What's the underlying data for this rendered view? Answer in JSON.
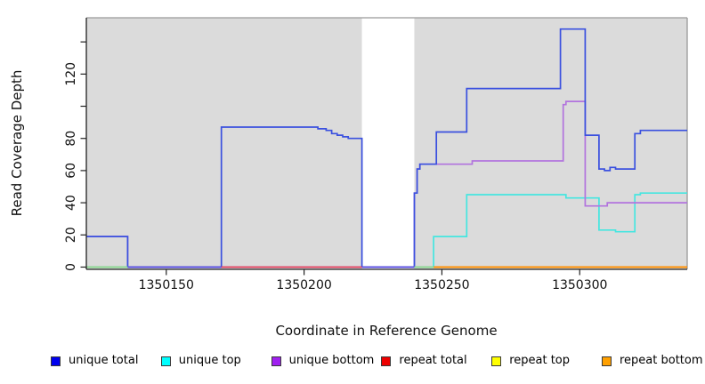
{
  "figure": {
    "xlabel": "Coordinate in Reference Genome",
    "ylabel": "Read Coverage Depth"
  },
  "legend": [
    {
      "label": "unique total",
      "color": "#0000EE"
    },
    {
      "label": "unique top",
      "color": "#00FFFF"
    },
    {
      "label": "unique bottom",
      "color": "#A020F0"
    },
    {
      "label": "repeat total",
      "color": "#EE0000"
    },
    {
      "label": "repeat top",
      "color": "#FFFF00"
    },
    {
      "label": "repeat bottom",
      "color": "#FFA000"
    }
  ],
  "chart_data": {
    "type": "line",
    "step": true,
    "title": "",
    "xlabel": "Coordinate in Reference Genome",
    "ylabel": "Read Coverage Depth",
    "xlim": [
      1350121,
      1350339
    ],
    "ylim": [
      0,
      148
    ],
    "grid": false,
    "plot_background": "#DBDBDB",
    "no_data_region": {
      "from": 1350221,
      "to": 1350240,
      "color": "#FFFFFF"
    },
    "x_ticks": [
      {
        "value": 1350150,
        "label": "1350150"
      },
      {
        "value": 1350200,
        "label": "1350200"
      },
      {
        "value": 1350250,
        "label": "1350250"
      },
      {
        "value": 1350300,
        "label": "1350300"
      }
    ],
    "y_ticks": [
      {
        "value": 0,
        "label": "0"
      },
      {
        "value": 20,
        "label": "20"
      },
      {
        "value": 40,
        "label": "40"
      },
      {
        "value": 60,
        "label": "60"
      },
      {
        "value": 80,
        "label": "80"
      },
      {
        "value": 100,
        "label": ""
      },
      {
        "value": 120,
        "label": "120"
      },
      {
        "value": 140,
        "label": ""
      }
    ],
    "series": [
      {
        "name": "repeat top",
        "color": "#F0F000",
        "points": [
          [
            1350121,
            0
          ],
          [
            1350339,
            0
          ]
        ]
      },
      {
        "name": "repeat total",
        "color": "#E8304A",
        "points": [
          [
            1350121,
            0
          ],
          [
            1350339,
            0
          ]
        ]
      },
      {
        "name": "repeat bottom",
        "color": "#FF9100",
        "points": [
          [
            1350121,
            0
          ],
          [
            1350339,
            0
          ]
        ]
      },
      {
        "name": "unique top",
        "color": "#45E6E0",
        "points": [
          [
            1350121,
            0
          ],
          [
            1350247,
            19
          ],
          [
            1350259,
            45
          ],
          [
            1350295,
            43
          ],
          [
            1350307,
            23
          ],
          [
            1350313,
            22
          ],
          [
            1350320,
            45
          ],
          [
            1350322,
            46
          ],
          [
            1350339,
            46
          ]
        ]
      },
      {
        "name": "unique bottom",
        "color": "#B273DE",
        "points": [
          [
            1350121,
            19
          ],
          [
            1350136,
            0
          ],
          [
            1350240,
            46
          ],
          [
            1350241,
            61
          ],
          [
            1350242,
            64
          ],
          [
            1350261,
            66
          ],
          [
            1350294,
            101
          ],
          [
            1350295,
            103
          ],
          [
            1350302,
            38
          ],
          [
            1350310,
            40
          ],
          [
            1350339,
            40
          ]
        ]
      },
      {
        "name": "unique total",
        "color": "#3A50DF",
        "points": [
          [
            1350121,
            19
          ],
          [
            1350136,
            0
          ],
          [
            1350170,
            87
          ],
          [
            1350205,
            86
          ],
          [
            1350208,
            85
          ],
          [
            1350210,
            83
          ],
          [
            1350212,
            82
          ],
          [
            1350214,
            81
          ],
          [
            1350216,
            80
          ],
          [
            1350221,
            0
          ],
          [
            1350240,
            46
          ],
          [
            1350241,
            61
          ],
          [
            1350242,
            64
          ],
          [
            1350248,
            84
          ],
          [
            1350259,
            111
          ],
          [
            1350293,
            148
          ],
          [
            1350302,
            82
          ],
          [
            1350307,
            61
          ],
          [
            1350309,
            60
          ],
          [
            1350311,
            62
          ],
          [
            1350313,
            61
          ],
          [
            1350320,
            83
          ],
          [
            1350322,
            85
          ],
          [
            1350339,
            85
          ]
        ]
      }
    ],
    "baseline_overlays": [
      {
        "from": 1350121,
        "to": 1350136,
        "color": "#8FD88F",
        "note": "unique top + repeat top overlap at 0"
      },
      {
        "from": 1350136,
        "to": 1350170,
        "color": "#5B4EE0",
        "note": "unique total + unique bottom at 0"
      },
      {
        "from": 1350170,
        "to": 1350221,
        "color": "#E8435A",
        "note": "repeat total at 0"
      },
      {
        "from": 1350221,
        "to": 1350240,
        "color": "#5B4EE0",
        "note": "unique total + unique bottom at 0"
      },
      {
        "from": 1350240,
        "to": 1350247,
        "color": "#8FD88F",
        "note": "unique top + repeat top overlap at 0"
      },
      {
        "from": 1350247,
        "to": 1350339,
        "color": "#FF9100",
        "note": "repeat bottom at 0"
      }
    ]
  }
}
